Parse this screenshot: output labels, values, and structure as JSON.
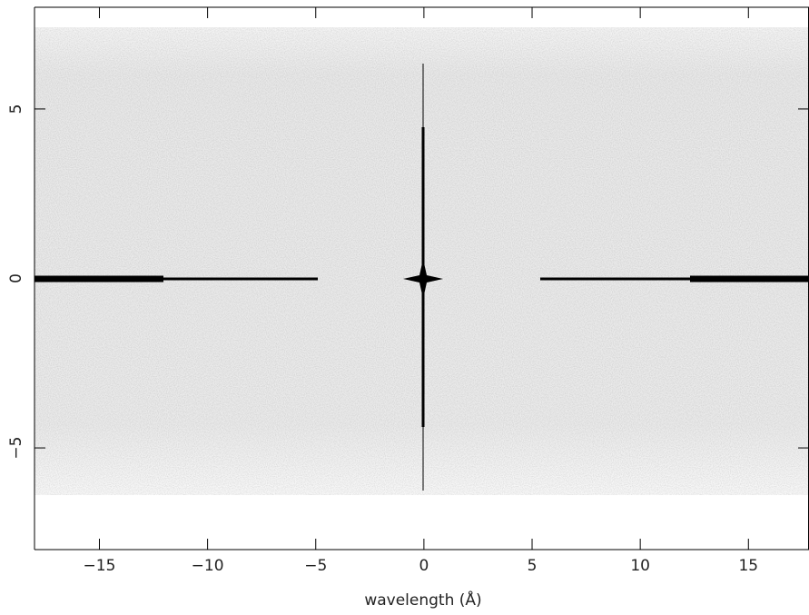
{
  "chart_data": {
    "type": "image",
    "xlabel": "wavelength (Å)",
    "xlim": [
      -18,
      17.8
    ],
    "ylim": [
      -8,
      8
    ],
    "xticks": [
      {
        "value": -15,
        "label": "−15"
      },
      {
        "value": -10,
        "label": "−10"
      },
      {
        "value": -5,
        "label": "−5"
      },
      0,
      5,
      10,
      15
    ],
    "yticks": [
      {
        "value": -5,
        "label": "−5"
      },
      0,
      5
    ]
  }
}
